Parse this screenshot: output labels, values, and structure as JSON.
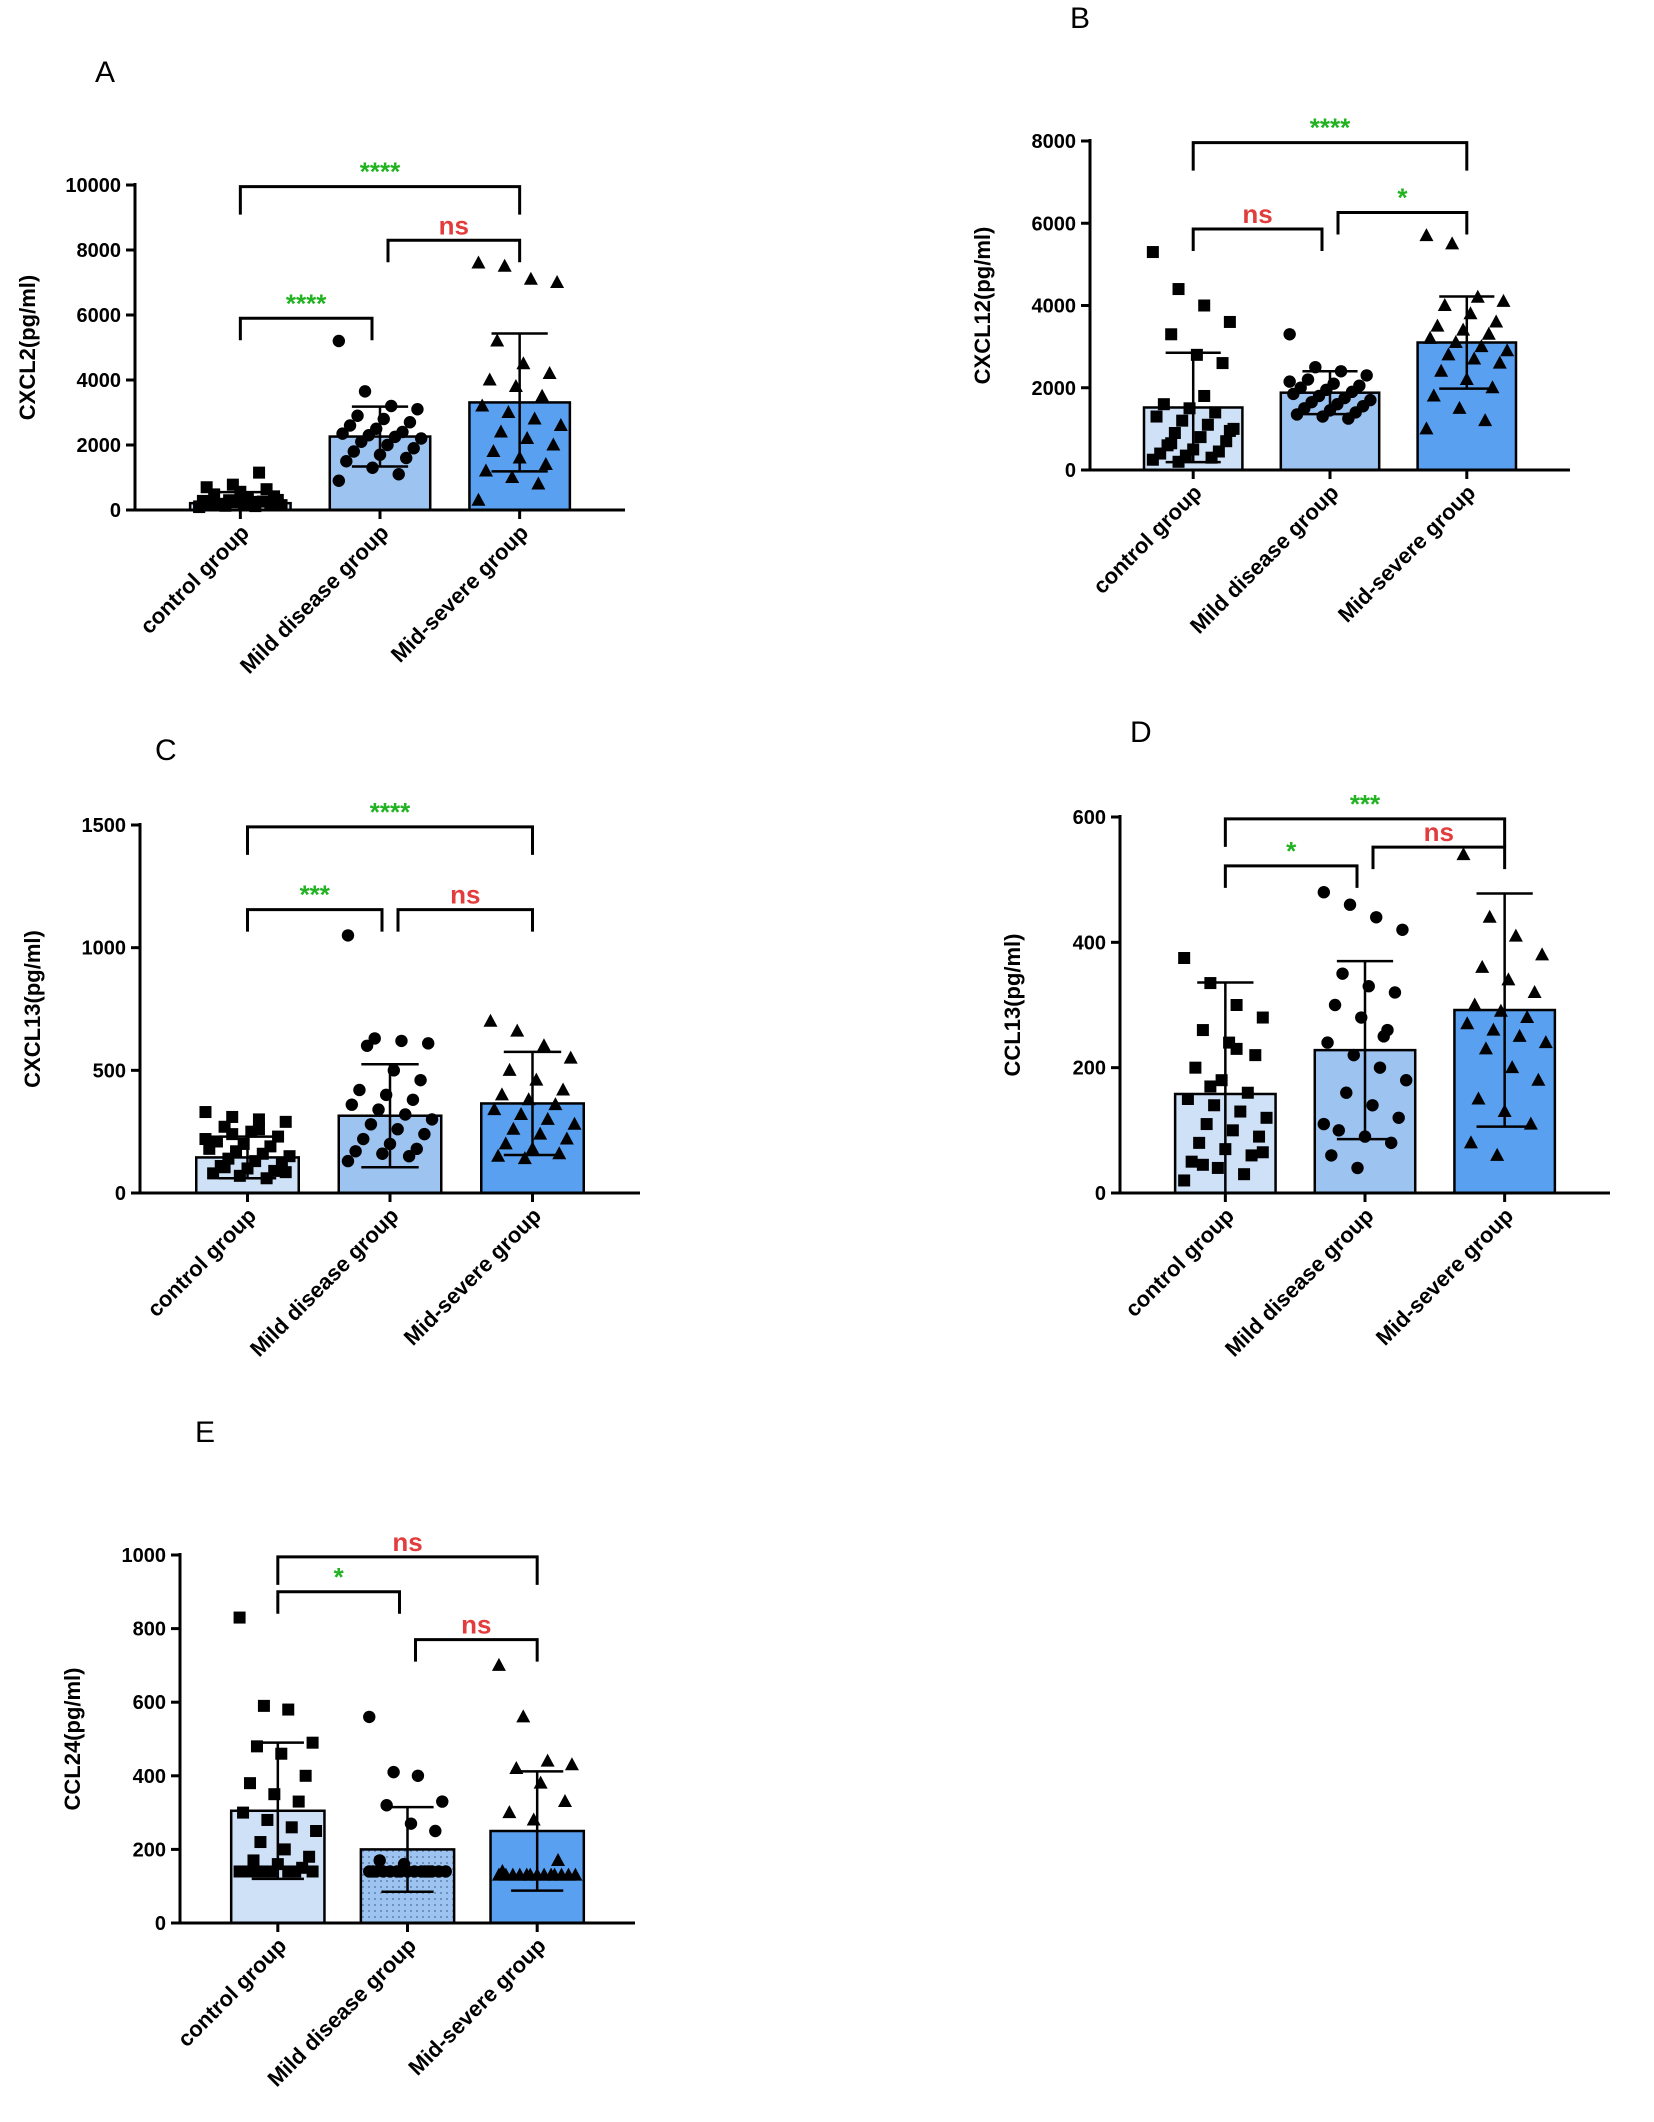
{
  "colors": {
    "control": "#cfe1f7",
    "mild": "#9dc3f0",
    "severe": "#5aa0f0",
    "significant": "#22b222",
    "nonsignificant": "#e23c3c"
  },
  "chart_data": [
    {
      "panel": "A",
      "type": "bar",
      "ylabel": "CXCL2(pg/ml)",
      "ylim": [
        0,
        10000
      ],
      "yticks": [
        0,
        2000,
        4000,
        6000,
        8000,
        10000
      ],
      "categories": [
        "control group",
        "Mild disease group",
        "Mid-severe group"
      ],
      "markers": [
        "square",
        "circle",
        "triangle"
      ],
      "values": [
        210,
        2260,
        3310
      ],
      "sd": [
        340,
        920,
        2120
      ],
      "points": [
        [
          110,
          130,
          150,
          170,
          190,
          200,
          210,
          220,
          240,
          260,
          280,
          300,
          120,
          150,
          180,
          350,
          420,
          480,
          560,
          640,
          700,
          780,
          1150,
          90,
          140,
          250,
          310,
          160
        ],
        [
          5200,
          3650,
          3200,
          3100,
          2900,
          2800,
          2700,
          2600,
          2500,
          2400,
          2350,
          2300,
          2250,
          2200,
          2100,
          2000,
          1900,
          1800,
          1700,
          1600,
          1500,
          1300,
          1100,
          900
        ],
        [
          7600,
          7500,
          7100,
          7000,
          5200,
          4500,
          4200,
          4000,
          3800,
          3500,
          3200,
          3000,
          2800,
          2600,
          2400,
          2200,
          2000,
          1800,
          1600,
          1400,
          1200,
          1000,
          800,
          300
        ]
      ],
      "comparisons": [
        {
          "from": 0,
          "to": 1,
          "label": "****",
          "significant": true
        },
        {
          "from": 1,
          "to": 2,
          "label": "ns",
          "significant": false
        },
        {
          "from": 0,
          "to": 2,
          "label": "****",
          "significant": true
        }
      ]
    },
    {
      "panel": "B",
      "type": "bar",
      "ylabel": "CXCL12(pg/ml)",
      "ylim": [
        0,
        8000
      ],
      "yticks": [
        0,
        2000,
        4000,
        6000,
        8000
      ],
      "categories": [
        "control group",
        "Mild disease group",
        "Mid-severe group"
      ],
      "markers": [
        "square",
        "circle",
        "triangle"
      ],
      "values": [
        1520,
        1880,
        3100
      ],
      "sd": [
        1330,
        520,
        1120
      ],
      "points": [
        [
          5300,
          4400,
          4000,
          3600,
          3300,
          2800,
          2600,
          1600,
          1500,
          1400,
          1300,
          1200,
          1100,
          1000,
          900,
          800,
          700,
          600,
          500,
          450,
          400,
          350,
          300,
          250,
          200,
          1800,
          950,
          650
        ],
        [
          3300,
          2500,
          2400,
          2300,
          2200,
          2100,
          2050,
          2000,
          1950,
          1900,
          1850,
          1800,
          1750,
          1700,
          1650,
          1600,
          1550,
          1500,
          1450,
          1400,
          1350,
          1300,
          1250,
          2150
        ],
        [
          5700,
          5500,
          4200,
          4100,
          4000,
          3800,
          3600,
          3500,
          3400,
          3300,
          3200,
          3100,
          3000,
          2900,
          2800,
          2700,
          2600,
          2400,
          2200,
          2000,
          1800,
          1500,
          1200,
          1000
        ]
      ],
      "comparisons": [
        {
          "from": 0,
          "to": 1,
          "label": "ns",
          "significant": false
        },
        {
          "from": 1,
          "to": 2,
          "label": "*",
          "significant": true
        },
        {
          "from": 0,
          "to": 2,
          "label": "****",
          "significant": true
        }
      ]
    },
    {
      "panel": "C",
      "type": "bar",
      "ylabel": "CXCL13(pg/ml)",
      "ylim": [
        0,
        1500
      ],
      "yticks": [
        0,
        500,
        1000,
        1500
      ],
      "categories": [
        "control group",
        "Mild disease group",
        "Mid-severe group"
      ],
      "markers": [
        "square",
        "circle",
        "triangle"
      ],
      "values": [
        145,
        315,
        365
      ],
      "sd": [
        85,
        210,
        210
      ],
      "points": [
        [
          330,
          310,
          300,
          290,
          270,
          250,
          230,
          210,
          200,
          190,
          180,
          170,
          160,
          150,
          140,
          130,
          120,
          110,
          100,
          90,
          80,
          70,
          60,
          220,
          240,
          260,
          85,
          105
        ],
        [
          1050,
          630,
          620,
          610,
          600,
          500,
          460,
          420,
          400,
          380,
          360,
          340,
          320,
          300,
          280,
          260,
          240,
          220,
          200,
          180,
          170,
          160,
          150,
          130
        ],
        [
          700,
          660,
          600,
          550,
          500,
          460,
          420,
          400,
          380,
          360,
          340,
          320,
          300,
          280,
          260,
          240,
          220,
          200,
          180,
          160,
          150,
          140
        ]
      ],
      "comparisons": [
        {
          "from": 0,
          "to": 1,
          "label": "***",
          "significant": true
        },
        {
          "from": 1,
          "to": 2,
          "label": "ns",
          "significant": false
        },
        {
          "from": 0,
          "to": 2,
          "label": "****",
          "significant": true
        }
      ]
    },
    {
      "panel": "D",
      "type": "bar",
      "ylabel": "CCL13(pg/ml)",
      "ylim": [
        0,
        600
      ],
      "yticks": [
        0,
        200,
        400,
        600
      ],
      "categories": [
        "control group",
        "Mild disease group",
        "Mid-severe group"
      ],
      "markers": [
        "square",
        "circle",
        "triangle"
      ],
      "values": [
        158,
        228,
        292
      ],
      "sd": [
        178,
        142,
        186
      ],
      "points": [
        [
          375,
          335,
          300,
          280,
          260,
          240,
          220,
          200,
          180,
          160,
          150,
          140,
          130,
          120,
          110,
          100,
          90,
          80,
          70,
          60,
          50,
          40,
          30,
          20,
          170,
          230,
          65,
          45
        ],
        [
          480,
          460,
          440,
          420,
          350,
          330,
          320,
          300,
          280,
          260,
          240,
          220,
          200,
          180,
          160,
          140,
          120,
          100,
          90,
          80,
          60,
          40,
          250,
          110
        ],
        [
          540,
          440,
          410,
          380,
          360,
          340,
          320,
          300,
          290,
          280,
          270,
          260,
          250,
          240,
          230,
          200,
          180,
          150,
          130,
          110,
          80,
          60
        ]
      ],
      "comparisons": [
        {
          "from": 0,
          "to": 1,
          "label": "*",
          "significant": true
        },
        {
          "from": 1,
          "to": 2,
          "label": "ns",
          "significant": false
        },
        {
          "from": 0,
          "to": 2,
          "label": "***",
          "significant": true
        }
      ]
    },
    {
      "panel": "E",
      "type": "bar",
      "ylabel": "CCL24(pg/ml)",
      "ylim": [
        0,
        1000
      ],
      "yticks": [
        0,
        200,
        400,
        600,
        800,
        1000
      ],
      "categories": [
        "control group",
        "Mild disease group",
        "Mid-severe group"
      ],
      "markers": [
        "square",
        "circle",
        "triangle"
      ],
      "values": [
        305,
        200,
        250
      ],
      "sd": [
        185,
        115,
        162
      ],
      "points": [
        [
          830,
          590,
          580,
          490,
          480,
          460,
          400,
          380,
          350,
          330,
          300,
          280,
          260,
          250,
          220,
          200,
          180,
          170,
          160,
          150,
          140,
          140,
          140,
          140,
          140,
          140,
          140,
          140
        ],
        [
          560,
          410,
          400,
          330,
          320,
          270,
          250,
          170,
          160,
          140,
          140,
          140,
          140,
          140,
          140,
          140,
          140,
          140,
          140,
          140,
          140,
          140,
          140,
          140
        ],
        [
          700,
          560,
          440,
          430,
          420,
          380,
          330,
          300,
          280,
          170,
          140,
          130,
          130,
          130,
          130,
          130,
          130,
          130,
          130,
          130,
          130,
          130,
          130,
          130
        ]
      ],
      "comparisons": [
        {
          "from": 0,
          "to": 1,
          "label": "*",
          "significant": true
        },
        {
          "from": 1,
          "to": 2,
          "label": "ns",
          "significant": false
        },
        {
          "from": 0,
          "to": 2,
          "label": "ns",
          "significant": false
        }
      ]
    }
  ]
}
